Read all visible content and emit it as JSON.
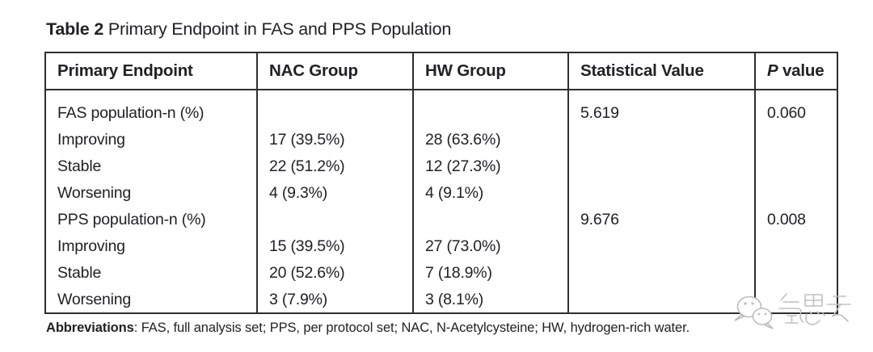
{
  "title": {
    "bold": "Table 2",
    "rest": " Primary Endpoint in FAS and PPS Population"
  },
  "table": {
    "columns": [
      "Primary Endpoint",
      "NAC Group",
      "HW Group",
      "Statistical Value"
    ],
    "p_value_column": {
      "italic_part": "P",
      "regular_part": " value"
    },
    "rows": [
      [
        "FAS population-n (%)",
        "",
        "",
        "5.619",
        "0.060"
      ],
      [
        "Improving",
        "17 (39.5%)",
        "28 (63.6%)",
        "",
        ""
      ],
      [
        "Stable",
        "22 (51.2%)",
        "12 (27.3%)",
        "",
        ""
      ],
      [
        "Worsening",
        "4 (9.3%)",
        "4 (9.1%)",
        "",
        ""
      ],
      [
        "PPS population-n (%)",
        "",
        "",
        "9.676",
        "0.008"
      ],
      [
        "Improving",
        "15 (39.5%)",
        "27 (73.0%)",
        "",
        ""
      ],
      [
        "Stable",
        "20 (52.6%)",
        "7 (18.9%)",
        "",
        ""
      ],
      [
        "Worsening",
        "3 (7.9%)",
        "3 (8.1%)",
        "",
        ""
      ]
    ]
  },
  "footnote": {
    "bold": "Abbreviations",
    "rest": ": FAS, full analysis set; PPS, per protocol set; NAC, N-Acetylcysteine; HW, hydrogen-rich water."
  },
  "watermark": {
    "text": "氢思云",
    "icon": "wechat-chat-bubbles",
    "color": "#c0c0c0"
  }
}
